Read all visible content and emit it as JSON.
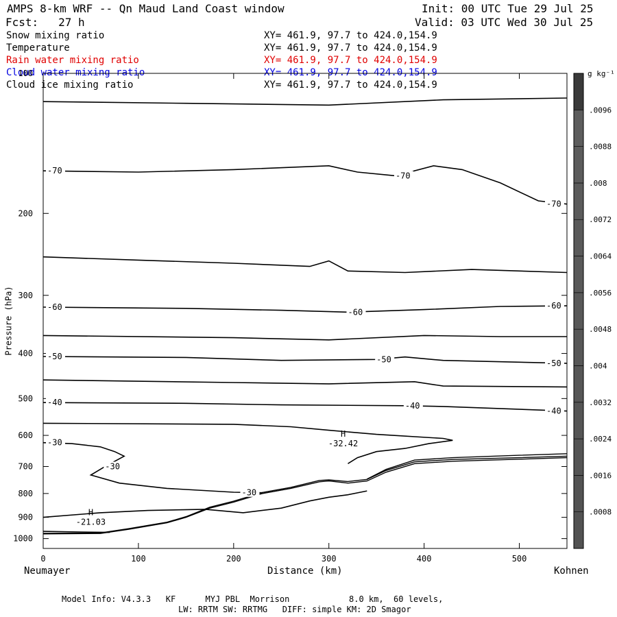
{
  "header": {
    "title": "AMPS 8-km WRF -- Qn Maud Land Coast window",
    "init": "Init: 00 UTC Tue 29 Jul 25",
    "fcst": "Fcst:   27 h",
    "valid": "Valid: 03 UTC Wed 30 Jul 25"
  },
  "fields": [
    {
      "name": "Snow mixing ratio",
      "xy": "XY= 461.9, 97.7 to 424.0,154.9",
      "color": "#000000"
    },
    {
      "name": "Temperature",
      "xy": "XY= 461.9, 97.7 to 424.0,154.9",
      "color": "#000000"
    },
    {
      "name": "Rain water mixing ratio",
      "xy": "XY= 461.9, 97.7 to 424.0,154.9",
      "color": "#e00000"
    },
    {
      "name": "Cloud water mixing ratio",
      "xy": "XY= 461.9, 97.7 to 424.0,154.9",
      "color": "#0000e0"
    },
    {
      "name": "Cloud ice mixing ratio",
      "xy": "XY= 461.9, 97.7 to 424.0,154.9",
      "color": "#000000"
    }
  ],
  "colorbar": {
    "unit": "g kg⁻¹",
    "labels": [
      ".0096",
      ".0088",
      ".008",
      ".0072",
      ".0064",
      ".0056",
      ".0048",
      ".004",
      ".0032",
      ".0024",
      ".0016",
      ".0008"
    ],
    "levels": [
      0.0008,
      0.0016,
      0.0024,
      0.0032,
      0.004,
      0.0048,
      0.0056,
      0.0064,
      0.0072,
      0.008,
      0.0088,
      0.0096,
      0.0104
    ]
  },
  "chart_data": {
    "type": "contour",
    "xlabel": "Distance (km)",
    "ylabel": "Pressure (hPa)",
    "xlim": [
      0,
      550
    ],
    "ylim": [
      1050,
      100
    ],
    "y_scale": "log",
    "x_ticks": [
      0,
      100,
      200,
      300,
      400,
      500
    ],
    "y_ticks": [
      100,
      200,
      300,
      400,
      500,
      600,
      700,
      800,
      900,
      1000
    ],
    "left_endpoint": "Neumayer",
    "right_endpoint": "Kohnen",
    "field": "Temperature",
    "contour_labels": [
      "-70",
      "-60",
      "-50",
      "-40",
      "-30"
    ],
    "extrema": [
      {
        "label": "H",
        "value": "-21.03",
        "x": 50,
        "p": 972
      },
      {
        "label": "H",
        "value": "-32.42",
        "x": 315,
        "p": 660
      }
    ],
    "isotherms": [
      {
        "level": "",
        "points": [
          [
            0,
            115
          ],
          [
            150,
            116
          ],
          [
            300,
            117
          ],
          [
            420,
            114
          ],
          [
            550,
            113
          ]
        ]
      },
      {
        "level": "-70",
        "points": [
          [
            0,
            162
          ],
          [
            100,
            163
          ],
          [
            200,
            161
          ],
          [
            300,
            158
          ],
          [
            330,
            163
          ],
          [
            370,
            166
          ],
          [
            410,
            158
          ],
          [
            440,
            161
          ],
          [
            480,
            172
          ],
          [
            520,
            188
          ],
          [
            550,
            191
          ]
        ]
      },
      {
        "level": "",
        "points": [
          [
            0,
            248
          ],
          [
            100,
            252
          ],
          [
            200,
            256
          ],
          [
            280,
            260
          ],
          [
            300,
            253
          ],
          [
            320,
            266
          ],
          [
            380,
            268
          ],
          [
            450,
            264
          ],
          [
            550,
            268
          ]
        ]
      },
      {
        "level": "-60",
        "points": [
          [
            0,
            318
          ],
          [
            150,
            320
          ],
          [
            250,
            323
          ],
          [
            320,
            326
          ],
          [
            400,
            322
          ],
          [
            480,
            317
          ],
          [
            550,
            316
          ]
        ]
      },
      {
        "level": "",
        "points": [
          [
            0,
            366
          ],
          [
            200,
            370
          ],
          [
            300,
            374
          ],
          [
            400,
            366
          ],
          [
            480,
            368
          ],
          [
            550,
            368
          ]
        ]
      },
      {
        "level": "-50",
        "points": [
          [
            0,
            406
          ],
          [
            150,
            408
          ],
          [
            250,
            414
          ],
          [
            350,
            412
          ],
          [
            380,
            407
          ],
          [
            420,
            414
          ],
          [
            550,
            420
          ]
        ]
      },
      {
        "level": "",
        "points": [
          [
            0,
            456
          ],
          [
            200,
            462
          ],
          [
            300,
            465
          ],
          [
            390,
            460
          ],
          [
            420,
            470
          ],
          [
            550,
            472
          ]
        ]
      },
      {
        "level": "-40",
        "points": [
          [
            0,
            510
          ],
          [
            150,
            512
          ],
          [
            250,
            516
          ],
          [
            380,
            518
          ],
          [
            420,
            520
          ],
          [
            550,
            532
          ]
        ]
      },
      {
        "level": "",
        "points": [
          [
            0,
            565
          ],
          [
            200,
            568
          ],
          [
            260,
            575
          ],
          [
            300,
            585
          ],
          [
            350,
            597
          ],
          [
            420,
            609
          ],
          [
            430,
            615
          ],
          [
            405,
            625
          ],
          [
            380,
            640
          ],
          [
            350,
            650
          ],
          [
            330,
            670
          ],
          [
            320,
            690
          ]
        ]
      },
      {
        "level": "-30",
        "points": [
          [
            0,
            622
          ],
          [
            30,
            625
          ],
          [
            60,
            635
          ],
          [
            75,
            650
          ],
          [
            85,
            665
          ],
          [
            65,
            700
          ],
          [
            50,
            730
          ],
          [
            80,
            760
          ],
          [
            130,
            780
          ],
          [
            200,
            795
          ],
          [
            230,
            797
          ]
        ]
      },
      {
        "level": "",
        "points": [
          [
            0,
            900
          ],
          [
            60,
            880
          ],
          [
            110,
            870
          ],
          [
            170,
            865
          ],
          [
            210,
            880
          ],
          [
            250,
            860
          ],
          [
            280,
            830
          ],
          [
            300,
            815
          ],
          [
            320,
            805
          ],
          [
            340,
            790
          ]
        ]
      },
      {
        "level": "",
        "points": [
          [
            0,
            965
          ],
          [
            40,
            968
          ],
          [
            70,
            970
          ]
        ]
      }
    ],
    "terrain": {
      "label": "",
      "color": "#ffffff",
      "points": [
        [
          0,
          1050
        ],
        [
          0,
          977
        ],
        [
          60,
          975
        ],
        [
          90,
          955
        ],
        [
          130,
          925
        ],
        [
          150,
          900
        ],
        [
          175,
          860
        ],
        [
          200,
          835
        ],
        [
          230,
          800
        ],
        [
          260,
          780
        ],
        [
          290,
          755
        ],
        [
          300,
          752
        ],
        [
          320,
          760
        ],
        [
          340,
          752
        ],
        [
          360,
          720
        ],
        [
          390,
          690
        ],
        [
          430,
          682
        ],
        [
          500,
          675
        ],
        [
          550,
          670
        ],
        [
          550,
          1050
        ]
      ]
    },
    "surface_lines": [
      {
        "points": [
          [
            0,
            977
          ],
          [
            60,
            975
          ],
          [
            90,
            955
          ],
          [
            130,
            925
          ],
          [
            150,
            900
          ],
          [
            175,
            860
          ],
          [
            200,
            835
          ],
          [
            230,
            800
          ],
          [
            260,
            780
          ],
          [
            290,
            755
          ],
          [
            300,
            752
          ],
          [
            320,
            760
          ],
          [
            340,
            752
          ],
          [
            360,
            720
          ],
          [
            390,
            690
          ],
          [
            430,
            682
          ],
          [
            500,
            675
          ],
          [
            550,
            670
          ]
        ]
      },
      {
        "points": [
          [
            0,
            974
          ],
          [
            60,
            972
          ],
          [
            90,
            952
          ],
          [
            130,
            922
          ],
          [
            150,
            897
          ],
          [
            175,
            856
          ],
          [
            200,
            831
          ],
          [
            230,
            796
          ],
          [
            260,
            776
          ],
          [
            290,
            750
          ],
          [
            300,
            748
          ],
          [
            320,
            754
          ],
          [
            340,
            746
          ],
          [
            360,
            714
          ],
          [
            390,
            684
          ],
          [
            430,
            676
          ],
          [
            500,
            670
          ],
          [
            550,
            665
          ]
        ]
      },
      {
        "points": [
          [
            340,
            745
          ],
          [
            360,
            710
          ],
          [
            390,
            678
          ],
          [
            430,
            670
          ],
          [
            500,
            662
          ],
          [
            550,
            657
          ]
        ]
      }
    ]
  },
  "footer": {
    "line1": "Model Info: V4.3.3   KF      MYJ PBL  Morrison            8.0 km,  60 levels,",
    "line2": "LW: RRTM SW: RRTMG   DIFF: simple KM: 2D Smagor"
  }
}
